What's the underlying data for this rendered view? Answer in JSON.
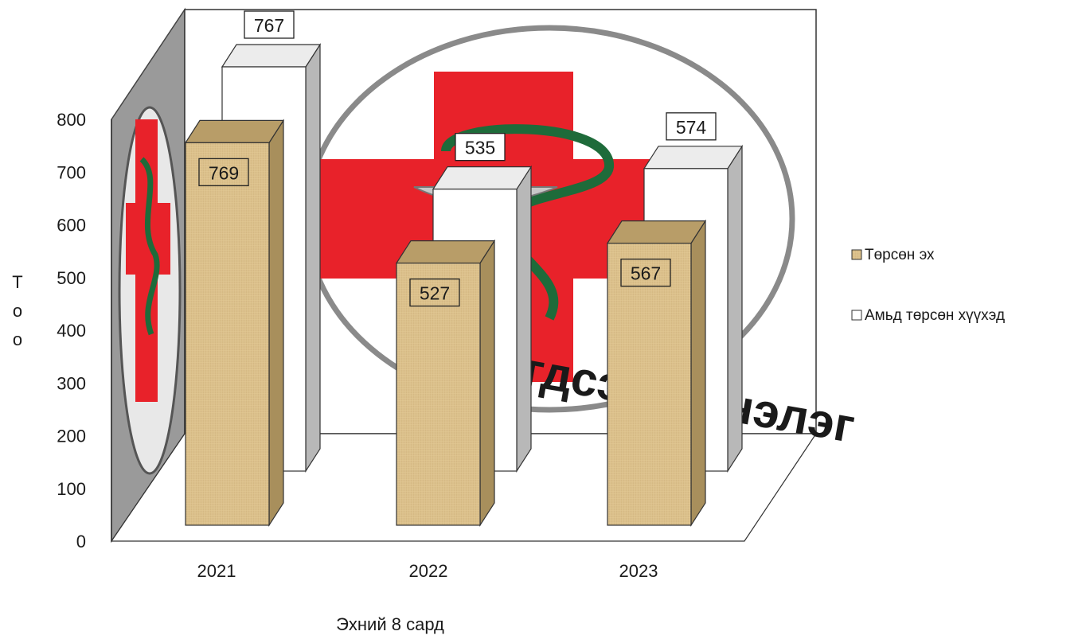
{
  "chart_data": {
    "type": "bar",
    "style": "3d-clustered-column",
    "categories": [
      "2021",
      "2022",
      "2023"
    ],
    "series": [
      {
        "name": "Төрсөн эх",
        "values": [
          769,
          527,
          567
        ],
        "color": "#d8bc86"
      },
      {
        "name": "Амьд төрсөн хүүхэд",
        "values": [
          767,
          535,
          574
        ],
        "color": "#ffffff"
      }
    ],
    "xlabel": "Эхний 8 сард",
    "ylabel": "Т о о",
    "ylim": [
      0,
      800
    ],
    "yticks": [
      0,
      100,
      200,
      300,
      400,
      500,
      600,
      700,
      800
    ],
    "grid": false,
    "legend_position": "right",
    "data_labels": true
  },
  "background_logo": {
    "lettering": "Нэгдсэн эмнэлэг",
    "cross_color": "#e8222a",
    "snake_color": "#1e6b3a"
  }
}
